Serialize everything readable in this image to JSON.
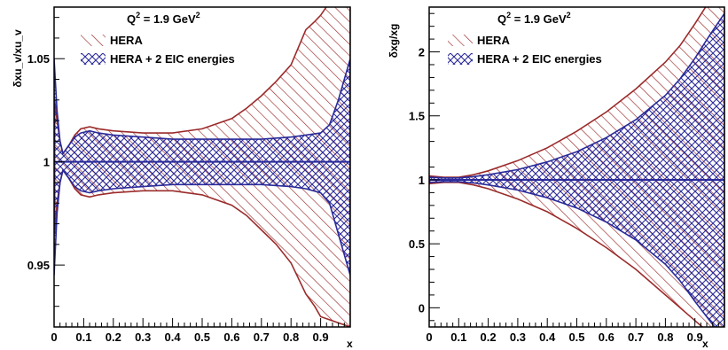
{
  "chart_data": [
    {
      "type": "area",
      "ylabel": "δxu_v/xu_v",
      "xlabel": "x",
      "annotation": {
        "text": "Q",
        "sup": "2",
        "rest": " = 1.9 GeV",
        "sup2": "2"
      },
      "xlim": [
        0,
        1.0
      ],
      "ylim": [
        0.92,
        1.075
      ],
      "xticks": [
        0,
        0.1,
        0.2,
        0.3,
        0.4,
        0.5,
        0.6,
        0.7,
        0.8,
        0.9
      ],
      "xticklabels": [
        "0",
        "0.1",
        "0.2",
        "0.3",
        "0.4",
        "0.5",
        "0.6",
        "0.7",
        "0.8",
        "0.9"
      ],
      "yticks": [
        0.95,
        1,
        1.05
      ],
      "yticklabels": [
        "0.95",
        "1",
        "1.05"
      ],
      "central": 1.0,
      "series": [
        {
          "name": "HERA",
          "color": "#9b2b2b",
          "pattern": "diagonal",
          "x": [
            0.002,
            0.01,
            0.02,
            0.03,
            0.05,
            0.07,
            0.09,
            0.12,
            0.15,
            0.2,
            0.3,
            0.4,
            0.5,
            0.6,
            0.65,
            0.7,
            0.75,
            0.8,
            0.85,
            0.88,
            0.9,
            1.0
          ],
          "upper": [
            1.03,
            1.02,
            1.01,
            1.004,
            1.008,
            1.013,
            1.016,
            1.017,
            1.016,
            1.015,
            1.014,
            1.014,
            1.016,
            1.021,
            1.026,
            1.032,
            1.039,
            1.047,
            1.064,
            1.068,
            1.071,
            1.092
          ],
          "lower": [
            0.965,
            0.98,
            0.99,
            0.996,
            0.992,
            0.987,
            0.984,
            0.983,
            0.984,
            0.985,
            0.986,
            0.986,
            0.984,
            0.979,
            0.974,
            0.967,
            0.96,
            0.951,
            0.936,
            0.93,
            0.925,
            0.92
          ]
        },
        {
          "name": "HERA + 2 EIC energies",
          "color": "#2a2a9a",
          "pattern": "crosshatch",
          "x": [
            0.0,
            0.01,
            0.02,
            0.03,
            0.05,
            0.07,
            0.09,
            0.12,
            0.15,
            0.2,
            0.3,
            0.4,
            0.5,
            0.6,
            0.7,
            0.8,
            0.85,
            0.9,
            0.93,
            0.96,
            1.0
          ],
          "upper": [
            1.05,
            1.025,
            1.01,
            1.004,
            1.008,
            1.012,
            1.014,
            1.015,
            1.014,
            1.013,
            1.012,
            1.011,
            1.011,
            1.011,
            1.011,
            1.012,
            1.013,
            1.014,
            1.018,
            1.03,
            1.05
          ],
          "lower": [
            0.945,
            0.975,
            0.99,
            0.996,
            0.992,
            0.988,
            0.986,
            0.985,
            0.986,
            0.987,
            0.988,
            0.989,
            0.989,
            0.989,
            0.989,
            0.988,
            0.987,
            0.985,
            0.98,
            0.965,
            0.945
          ]
        }
      ],
      "legend": "top-left"
    },
    {
      "type": "area",
      "ylabel": "δxg/xg",
      "xlabel": "x",
      "annotation": {
        "text": "Q",
        "sup": "2",
        "rest": " = 1.9 GeV",
        "sup2": "2"
      },
      "xlim": [
        0,
        1.0
      ],
      "ylim": [
        -0.15,
        2.35
      ],
      "xticks": [
        0,
        0.1,
        0.2,
        0.3,
        0.4,
        0.5,
        0.6,
        0.7,
        0.8,
        0.9
      ],
      "xticklabels": [
        "0",
        "0.1",
        "0.2",
        "0.3",
        "0.4",
        "0.5",
        "0.6",
        "0.7",
        "0.8",
        "0.9"
      ],
      "yticks": [
        0,
        0.5,
        1,
        1.5,
        2
      ],
      "yticklabels": [
        "0",
        "0.5",
        "1",
        "1.5",
        "2"
      ],
      "central": 1.0,
      "series": [
        {
          "name": "HERA",
          "color": "#9b2b2b",
          "pattern": "diagonal",
          "x": [
            0.0,
            0.05,
            0.1,
            0.15,
            0.2,
            0.3,
            0.4,
            0.5,
            0.6,
            0.7,
            0.8,
            0.85,
            0.9,
            0.95,
            1.0
          ],
          "upper": [
            1.03,
            1.02,
            1.02,
            1.04,
            1.07,
            1.15,
            1.25,
            1.38,
            1.53,
            1.71,
            1.92,
            2.05,
            2.22,
            2.4,
            2.6
          ],
          "lower": [
            0.97,
            0.98,
            0.98,
            0.96,
            0.93,
            0.85,
            0.75,
            0.62,
            0.47,
            0.3,
            0.1,
            0.0,
            -0.1,
            -0.2,
            -0.3
          ]
        },
        {
          "name": "HERA + 2 EIC energies",
          "color": "#2a2a9a",
          "pattern": "crosshatch",
          "x": [
            0.0,
            0.05,
            0.1,
            0.15,
            0.2,
            0.3,
            0.4,
            0.5,
            0.6,
            0.7,
            0.8,
            0.85,
            0.9,
            0.95,
            1.0
          ],
          "upper": [
            1.02,
            1.015,
            1.015,
            1.025,
            1.04,
            1.08,
            1.14,
            1.22,
            1.33,
            1.47,
            1.66,
            1.79,
            1.95,
            2.13,
            2.3
          ],
          "lower": [
            0.98,
            0.985,
            0.985,
            0.975,
            0.96,
            0.92,
            0.86,
            0.78,
            0.67,
            0.53,
            0.34,
            0.21,
            0.05,
            -0.1,
            -0.25
          ]
        }
      ],
      "legend": "top-left"
    }
  ]
}
